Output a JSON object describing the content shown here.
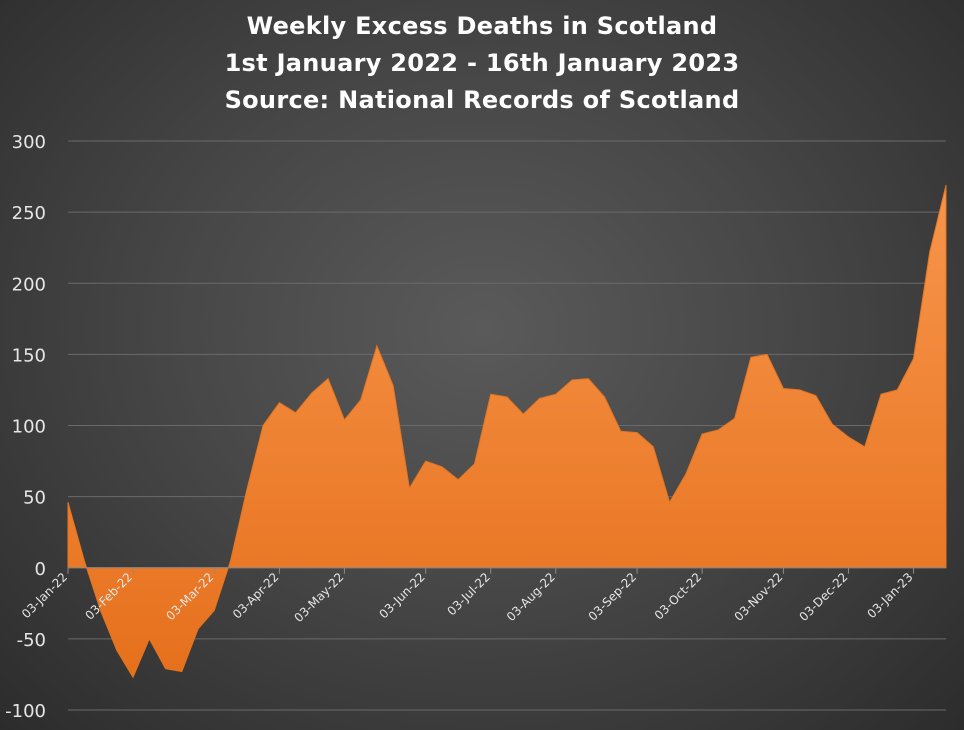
{
  "chart_data": {
    "type": "area",
    "title": [
      "Weekly Excess Deaths in Scotland",
      "1st January 2022  - 16th January 2023",
      "Source: National Records of Scotland"
    ],
    "xlabel": "",
    "ylabel": "",
    "ylim": [
      -100,
      300
    ],
    "yticks": [
      300,
      250,
      200,
      150,
      100,
      50,
      0,
      -50,
      -100
    ],
    "grid": true,
    "legend": "none",
    "fill_color": "#ee7d22",
    "xtick_labels": [
      "03-Jan-22",
      "03-Feb-22",
      "03-Mar-22",
      "03-Apr-22",
      "03-May-22",
      "03-Jun-22",
      "03-Jul-22",
      "03-Aug-22",
      "03-Sep-22",
      "03-Oct-22",
      "03-Nov-22",
      "03-Dec-22",
      "03-Jan-23"
    ],
    "series": [
      {
        "x": [
          "03-Jan-22",
          "10-Jan-22",
          "17-Jan-22",
          "24-Jan-22",
          "31-Jan-22",
          "07-Feb-22",
          "14-Feb-22",
          "21-Feb-22",
          "28-Feb-22",
          "07-Mar-22",
          "14-Mar-22",
          "21-Mar-22",
          "28-Mar-22",
          "04-Apr-22",
          "11-Apr-22",
          "18-Apr-22",
          "25-Apr-22",
          "02-May-22",
          "09-May-22",
          "16-May-22",
          "23-May-22",
          "30-May-22",
          "06-Jun-22",
          "13-Jun-22",
          "20-Jun-22",
          "27-Jun-22",
          "04-Jul-22",
          "11-Jul-22",
          "18-Jul-22",
          "25-Jul-22",
          "01-Aug-22",
          "08-Aug-22",
          "15-Aug-22",
          "22-Aug-22",
          "29-Aug-22",
          "05-Sep-22",
          "12-Sep-22",
          "19-Sep-22",
          "26-Sep-22",
          "03-Oct-22",
          "10-Oct-22",
          "17-Oct-22",
          "24-Oct-22",
          "31-Oct-22",
          "07-Nov-22",
          "14-Nov-22",
          "21-Nov-22",
          "28-Nov-22",
          "05-Dec-22",
          "12-Dec-22",
          "19-Dec-22",
          "26-Dec-22",
          "02-Jan-23",
          "09-Jan-23",
          "16-Jan-23"
        ],
        "values": [
          46,
          5,
          -30,
          -58,
          -77,
          -50,
          -71,
          -73,
          -43,
          -30,
          5,
          55,
          100,
          116,
          109,
          123,
          133,
          104,
          118,
          156,
          128,
          56,
          75,
          71,
          62,
          73,
          122,
          120,
          108,
          119,
          122,
          132,
          133,
          120,
          96,
          95,
          85,
          46,
          66,
          94,
          97,
          105,
          148,
          150,
          126,
          125,
          121,
          101,
          92,
          85,
          122,
          125,
          147,
          222,
          269
        ]
      }
    ]
  }
}
